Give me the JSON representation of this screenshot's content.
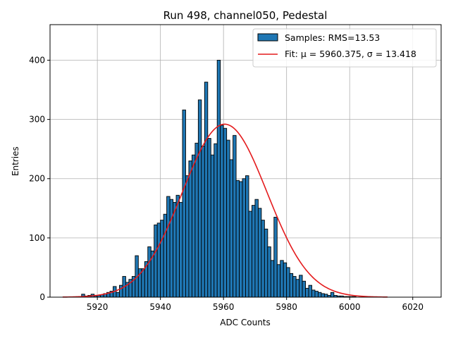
{
  "chart_data": {
    "type": "bar",
    "title": "Run 498, channel050, Pedestal",
    "xlabel": "ADC Counts",
    "ylabel": "Entries",
    "xlim": [
      5905,
      6029
    ],
    "ylim": [
      0,
      460
    ],
    "xticks": [
      5920,
      5940,
      5960,
      5980,
      6000,
      6020
    ],
    "yticks": [
      0,
      100,
      200,
      300,
      400
    ],
    "grid": true,
    "legend_position": "top-right",
    "colors": {
      "bars": "#1f77b4",
      "bar_edge": "#000000",
      "fit": "#e41a1c",
      "grid": "#b0b0b0"
    },
    "legend": [
      {
        "label": "Samples: RMS=13.53",
        "kind": "patch"
      },
      {
        "label": "Fit: μ = 5960.375, σ = 13.418",
        "kind": "line"
      }
    ],
    "histogram": {
      "bin_start": 5915,
      "bin_width": 1,
      "counts": [
        5,
        2,
        3,
        5,
        2,
        3,
        4,
        6,
        8,
        10,
        18,
        8,
        20,
        35,
        25,
        30,
        35,
        70,
        48,
        48,
        60,
        85,
        78,
        122,
        125,
        130,
        140,
        170,
        165,
        160,
        172,
        160,
        316,
        205,
        230,
        240,
        260,
        333,
        255,
        363,
        268,
        240,
        259,
        400,
        290,
        285,
        265,
        232,
        273,
        197,
        195,
        200,
        205,
        145,
        155,
        165,
        150,
        130,
        115,
        85,
        62,
        135,
        55,
        62,
        58,
        50,
        40,
        35,
        30,
        37,
        27,
        15,
        20,
        12,
        10,
        8,
        6,
        5,
        3,
        8,
        3,
        2,
        2,
        1,
        1,
        1,
        1
      ]
    },
    "fit": {
      "label": "Fit: μ = 5960.375, σ = 13.418",
      "mu": 5960.375,
      "sigma": 13.418,
      "amplitude": 292,
      "x_range": [
        5909,
        6012
      ]
    }
  }
}
